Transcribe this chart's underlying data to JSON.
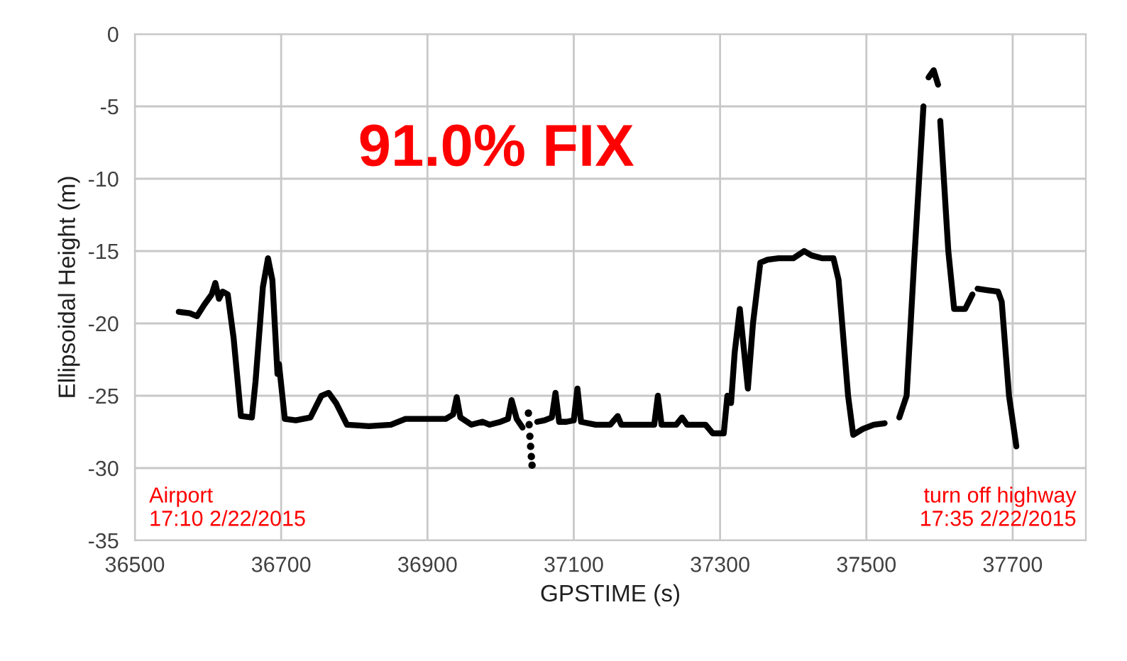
{
  "chart_data": {
    "type": "line",
    "xlabel": "GPSTIME (s)",
    "ylabel": "Ellipsoidal Height (m)",
    "xlim": [
      36500,
      37800
    ],
    "xticks": [
      36500,
      36700,
      36900,
      37100,
      37300,
      37500,
      37700
    ],
    "ylim": [
      -35,
      0
    ],
    "yticks": [
      -35,
      -30,
      -25,
      -20,
      -15,
      -10,
      -5,
      0
    ],
    "grid": true,
    "legend": false,
    "annotations": [
      "91.0% FIX",
      "Airport\n17:10 2/22/2015",
      "turn off highway\n17:35 2/22/2015"
    ],
    "series": [
      {
        "color": "#000000",
        "x": [
          36560,
          36575,
          36585,
          36595,
          36605,
          36610,
          36615,
          36620,
          36627,
          36635,
          36645,
          36660,
          36665,
          36675,
          36682,
          36688,
          36695,
          36696,
          36697,
          36705,
          36720,
          36740,
          36755,
          36765,
          36775,
          36790,
          36820,
          36850,
          36870,
          36900,
          36925,
          36935,
          36940,
          36945,
          36960,
          36975,
          36985,
          37000,
          37010,
          37015,
          37022,
          37030,
          37040,
          37050,
          37060,
          37070,
          37075,
          37080,
          37090,
          37100,
          37105,
          37110,
          37130,
          37150,
          37160,
          37165,
          37190,
          37210,
          37215,
          37220,
          37240,
          37248,
          37255,
          37280,
          37290,
          37305,
          37310,
          37315,
          37320,
          37327,
          37333,
          37338,
          37345,
          37355,
          37365,
          37380,
          37400,
          37415,
          37425,
          37440,
          37455,
          37462,
          37475,
          37482,
          37495,
          37510,
          37525,
          37535,
          37545,
          37555,
          37565,
          37578,
          37581,
          37585,
          37592,
          37598,
          37599,
          37601,
          37612,
          37620,
          37635,
          37645,
          37648,
          37652,
          37665,
          37680,
          37685,
          37695,
          37705
        ],
        "values": [
          -19.2,
          -19.3,
          -19.5,
          -18.7,
          -18.0,
          -17.2,
          -18.3,
          -17.8,
          -18.0,
          -21,
          -26.4,
          -26.5,
          -24,
          -17.5,
          -15.5,
          -17,
          -23.5,
          null,
          -22.8,
          -26.6,
          -26.7,
          -26.5,
          -25.0,
          -24.8,
          -25.5,
          -27.0,
          -27.1,
          -27.0,
          -26.6,
          -26.6,
          -26.6,
          -26.3,
          -25.1,
          -26.5,
          -27.0,
          -26.8,
          -27.0,
          -26.8,
          -26.6,
          -25.3,
          -26.6,
          -27.2,
          null,
          -26.8,
          -26.7,
          -26.5,
          -24.8,
          -26.8,
          -26.8,
          -26.7,
          -24.5,
          -26.8,
          -27.0,
          -27.0,
          -26.4,
          -27.0,
          -27.0,
          -27.0,
          -25.0,
          -27.0,
          -27.0,
          -26.5,
          -27.0,
          -27.0,
          -27.6,
          -27.6,
          -25.0,
          -25.5,
          -22,
          -19.0,
          -22,
          -24.5,
          -20,
          -15.8,
          -15.6,
          -15.5,
          -15.5,
          -15.0,
          -15.3,
          -15.5,
          -15.5,
          -17,
          -25,
          -27.7,
          -27.3,
          -27.0,
          -26.9,
          null,
          -26.5,
          -25,
          -16,
          -5,
          null,
          -3.0,
          -2.5,
          -3.5,
          null,
          -6.0,
          -15,
          -19.0,
          -19.0,
          -18.0,
          null,
          -17.6,
          -17.7,
          -17.8,
          -18.5,
          -25,
          -28.5
        ]
      },
      {
        "type": "scatter",
        "color": "#000000",
        "marker": "circle",
        "x": [
          37038,
          37039,
          37040,
          37041,
          37042,
          37043
        ],
        "values": [
          -26.2,
          -27.0,
          -27.8,
          -28.5,
          -29.2,
          -29.8
        ]
      }
    ]
  }
}
